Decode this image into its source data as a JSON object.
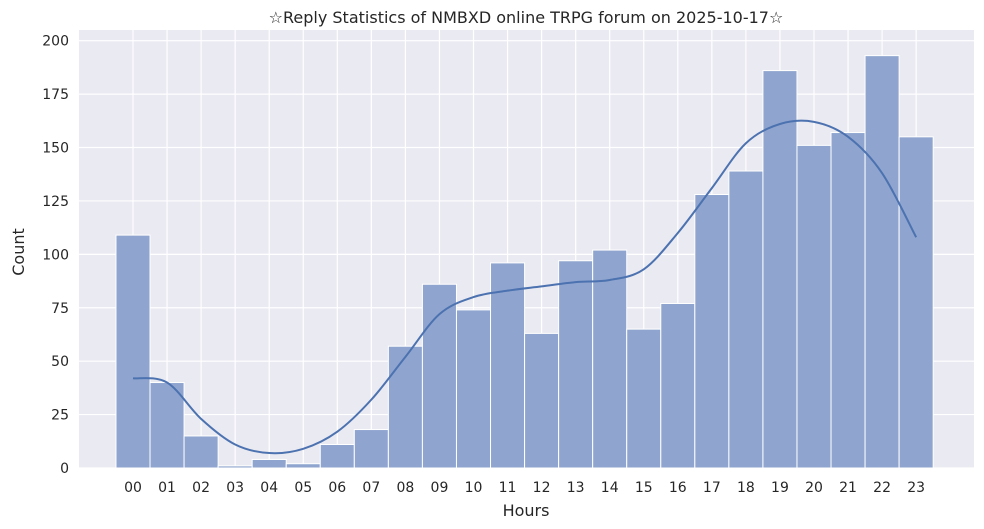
{
  "chart_data": {
    "type": "bar",
    "title": "☆Reply Statistics of NMBXD online TRPG forum on 2025-10-17☆",
    "xlabel": "Hours",
    "ylabel": "Count",
    "categories": [
      "00",
      "01",
      "02",
      "03",
      "04",
      "05",
      "06",
      "07",
      "08",
      "09",
      "10",
      "11",
      "12",
      "13",
      "14",
      "15",
      "16",
      "17",
      "18",
      "19",
      "20",
      "21",
      "22",
      "23"
    ],
    "values": [
      109,
      40,
      15,
      1,
      4,
      2,
      11,
      18,
      57,
      86,
      74,
      96,
      63,
      97,
      102,
      65,
      77,
      128,
      139,
      186,
      151,
      157,
      193,
      155
    ],
    "kde_values": [
      42,
      40,
      23,
      11,
      7,
      9,
      17,
      32,
      52,
      72,
      80,
      83,
      85,
      87,
      88,
      93,
      110,
      131,
      152,
      161,
      162,
      155,
      138,
      108
    ],
    "ylim": [
      0,
      205
    ],
    "yticks": [
      0,
      25,
      50,
      75,
      100,
      125,
      150,
      175,
      200
    ],
    "grid": true,
    "colors": {
      "background": "#eaeaf2",
      "grid": "#ffffff",
      "bar_fill": "#8fa5cf",
      "bar_edge": "#ffffff",
      "kde_line": "#4c72b0"
    }
  }
}
